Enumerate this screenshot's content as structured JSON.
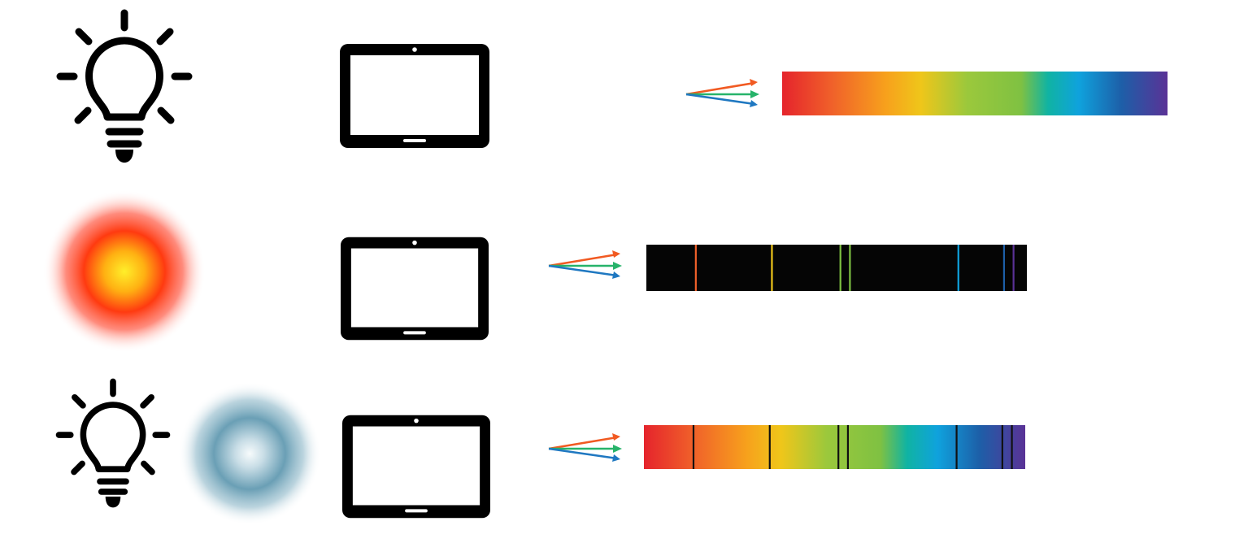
{
  "diagram": {
    "kind": "spectroscopy-comparison",
    "rows": [
      {
        "id": "continuous",
        "sources": [
          {
            "type": "lightbulb",
            "icon": "lightbulb-icon"
          }
        ],
        "detector": {
          "icon": "tablet-icon"
        },
        "arrows": {
          "icon": "dispersion-arrows-icon",
          "colors": [
            "#f15a22",
            "#27b36a",
            "#1f78c1"
          ]
        },
        "spectrum": {
          "type": "continuous",
          "background": "gradient",
          "line_color": null,
          "line_positions": []
        }
      },
      {
        "id": "emission",
        "sources": [
          {
            "type": "hot-gas",
            "icon": "hot-gas-glow-icon",
            "colors": [
              "#ffee22",
              "#ff3300"
            ]
          }
        ],
        "detector": {
          "icon": "tablet-icon"
        },
        "arrows": {
          "icon": "dispersion-arrows-icon",
          "colors": [
            "#f15a22",
            "#27b36a",
            "#1f78c1"
          ]
        },
        "spectrum": {
          "type": "emission",
          "background": "#050505",
          "line_color": "colored",
          "line_positions": [
            0.13,
            0.33,
            0.51,
            0.535,
            0.82,
            0.94,
            0.965
          ]
        }
      },
      {
        "id": "absorption",
        "sources": [
          {
            "type": "lightbulb",
            "icon": "lightbulb-icon"
          },
          {
            "type": "cool-gas",
            "icon": "cool-gas-cloud-icon",
            "colors": [
              "#f0f8fa",
              "#6a9fb5"
            ]
          }
        ],
        "detector": {
          "icon": "tablet-icon"
        },
        "arrows": {
          "icon": "dispersion-arrows-icon",
          "colors": [
            "#f15a22",
            "#27b36a",
            "#1f78c1"
          ]
        },
        "spectrum": {
          "type": "absorption",
          "background": "gradient",
          "line_color": "#111111",
          "line_positions": [
            0.13,
            0.33,
            0.51,
            0.535,
            0.82,
            0.94,
            0.965
          ]
        }
      }
    ],
    "spectrum_colors": [
      "#e5242c",
      "#f0612a",
      "#f7a11c",
      "#efc61a",
      "#9bc83c",
      "#7fc142",
      "#10b3a3",
      "#0fa2dd",
      "#1d5fa8",
      "#5a3296"
    ]
  }
}
